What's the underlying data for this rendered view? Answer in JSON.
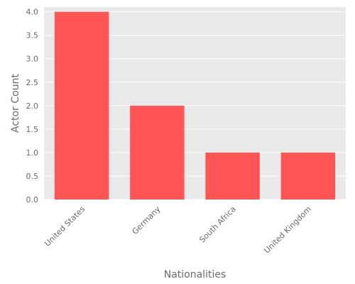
{
  "chart_data": {
    "type": "bar",
    "categories": [
      "United States",
      "Germany",
      "South Africa",
      "United Kingdom"
    ],
    "values": [
      4,
      2,
      1,
      1
    ],
    "title": "",
    "xlabel": "Nationalities",
    "ylabel": "Actor Count",
    "ylim": [
      0,
      4.1
    ],
    "yticks": [
      "0.0",
      "0.5",
      "1.0",
      "1.5",
      "2.0",
      "2.5",
      "3.0",
      "3.5",
      "4.0"
    ],
    "grid": true,
    "bar_color": "#ff5555",
    "plot_background": "#e9e9e9",
    "grid_color": "#ffffff"
  }
}
